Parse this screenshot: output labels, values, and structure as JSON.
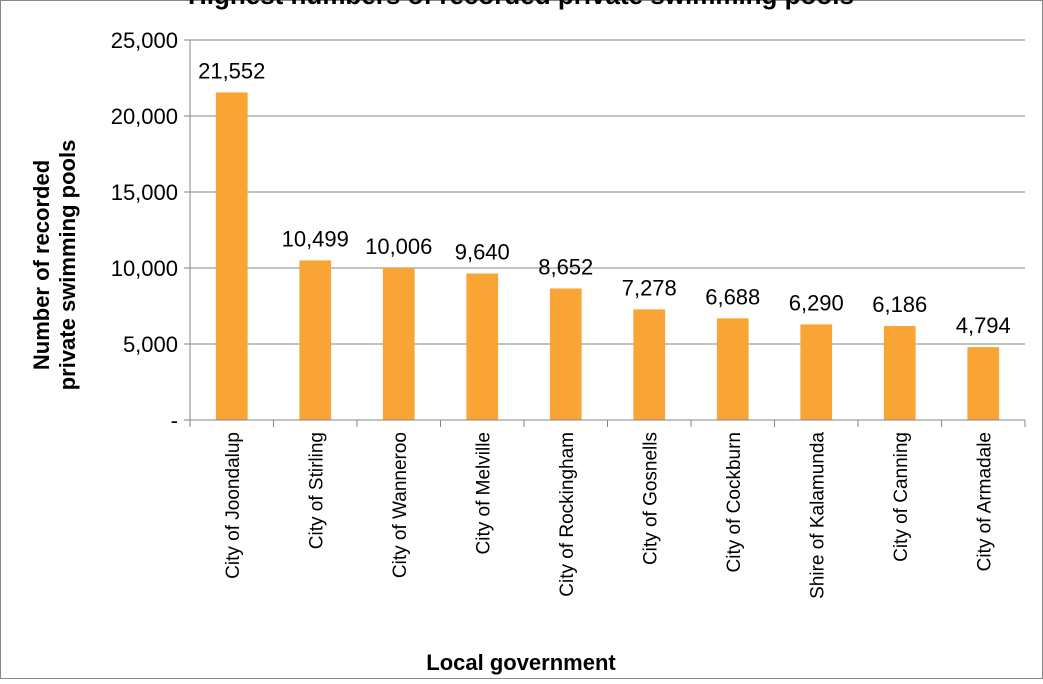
{
  "chart_data": {
    "type": "bar",
    "title": "Highest numbers of recorded private swimming pools",
    "xlabel": "Local government",
    "ylabel_lines": [
      "Number of recorded",
      "private swimming pools"
    ],
    "categories": [
      "City of Joondalup",
      "City of Stirling",
      "City of Wanneroo",
      "City of Melville",
      "City of Rockingham",
      "City of Gosnells",
      "City of Cockburn",
      "Shire of Kalamunda",
      "City of Canning",
      "City of Armadale"
    ],
    "values": [
      21552,
      10499,
      10006,
      9640,
      8652,
      7278,
      6688,
      6290,
      6186,
      4794
    ],
    "data_labels": [
      "21,552",
      "10,499",
      "10,006",
      "9,640",
      "8,652",
      "7,278",
      "6,688",
      "6,290",
      "6,186",
      "4,794"
    ],
    "ylim": [
      0,
      25000
    ],
    "yticks": [
      0,
      5000,
      10000,
      15000,
      20000,
      25000
    ],
    "ytick_labels": [
      "-",
      "5,000",
      "10,000",
      "15,000",
      "20,000",
      "25,000"
    ],
    "grid": true,
    "bar_color": "#F8A535",
    "grid_color": "#868686"
  }
}
